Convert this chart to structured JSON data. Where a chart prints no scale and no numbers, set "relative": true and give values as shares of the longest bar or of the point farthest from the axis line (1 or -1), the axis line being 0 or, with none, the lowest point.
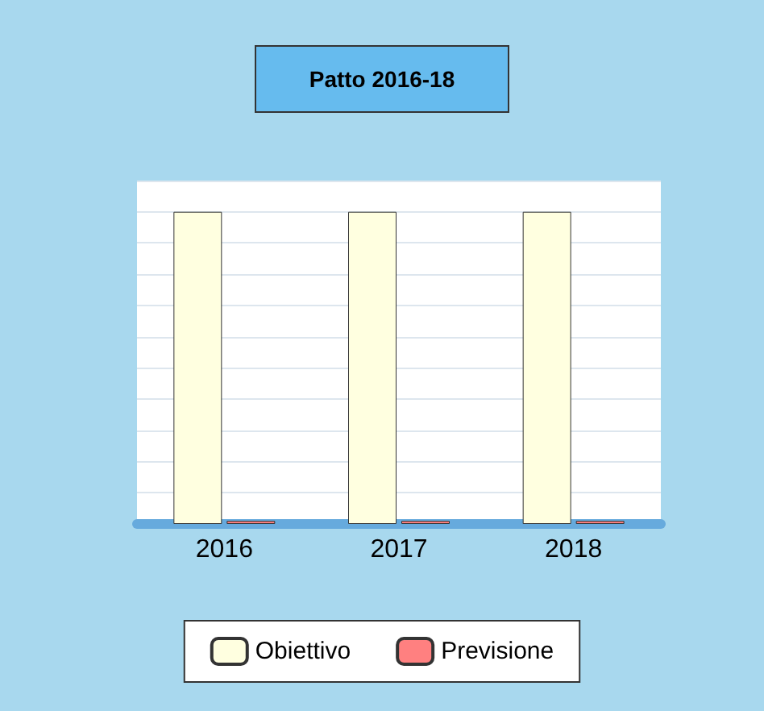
{
  "chart_data": {
    "type": "bar",
    "title": "Patto 2016-18",
    "categories": [
      "2016",
      "2017",
      "2018"
    ],
    "series": [
      {
        "name": "Obiettivo",
        "color": "#ffffe0",
        "values": [
          1,
          1,
          1
        ]
      },
      {
        "name": "Previsione",
        "color": "#ff8080",
        "values": [
          0.01,
          0.01,
          0.01
        ]
      }
    ],
    "relative": true,
    "grid": "y",
    "legend": "bottom"
  }
}
